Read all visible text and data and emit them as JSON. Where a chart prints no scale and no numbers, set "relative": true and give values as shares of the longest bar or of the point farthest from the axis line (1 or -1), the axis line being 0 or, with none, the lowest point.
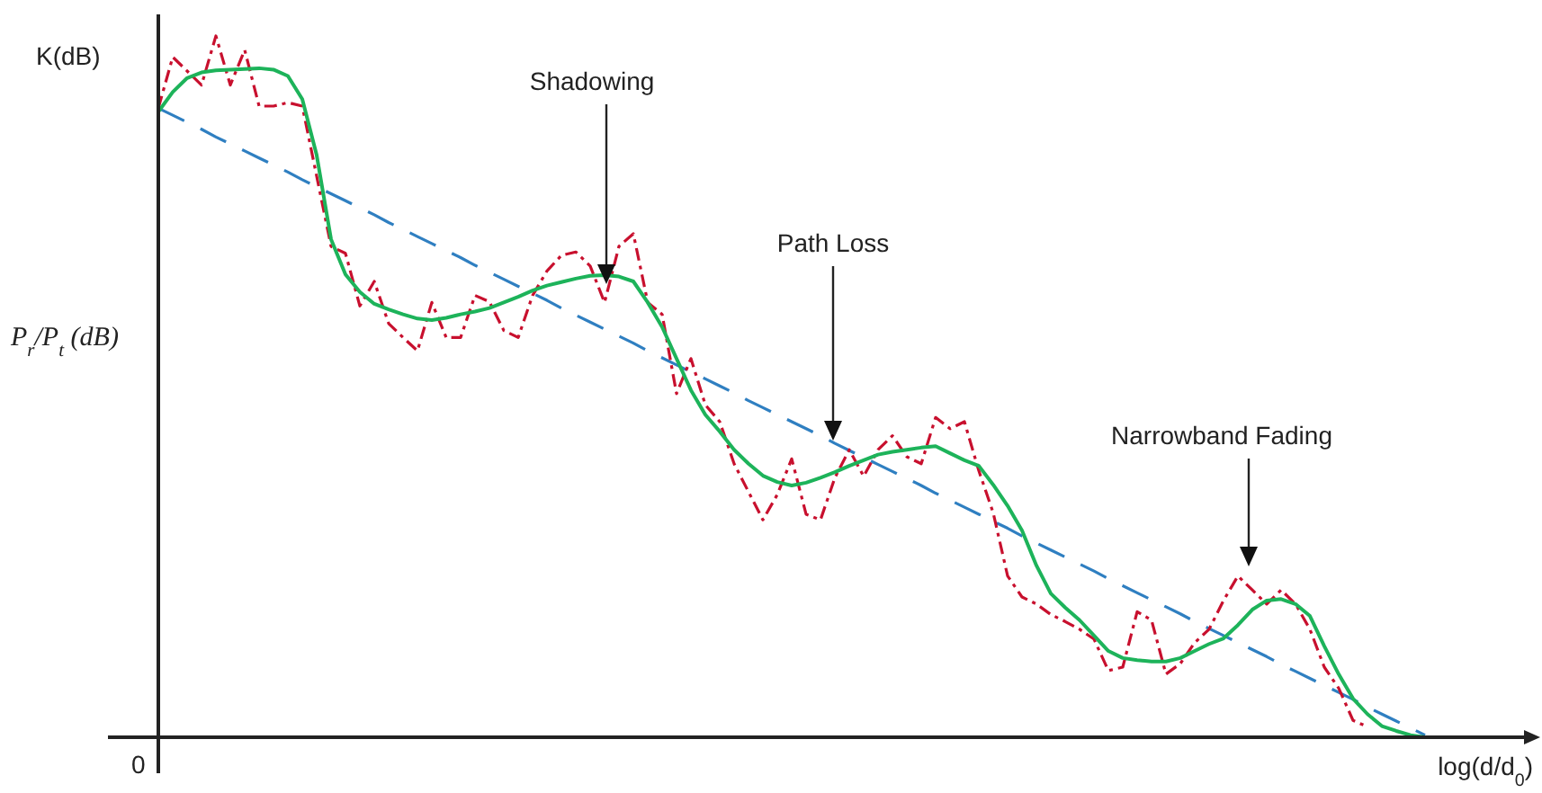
{
  "chart_data": {
    "type": "line",
    "relative": true,
    "xlabel": "log(d/d$_{0}$)",
    "ylabel": "P$_{r}$/P$_{t}$ (dB)",
    "categories": [
      null,
      null,
      null,
      null,
      null,
      null,
      null,
      null,
      null,
      null,
      null,
      null,
      null,
      null,
      null,
      null,
      null,
      null,
      null,
      null,
      null,
      null,
      null,
      null,
      null,
      null,
      null,
      null,
      null,
      null,
      null,
      null,
      null,
      null,
      null,
      null,
      null,
      null,
      null,
      null,
      null,
      null,
      null,
      null,
      null,
      null,
      null,
      null,
      null,
      null,
      null,
      null,
      null,
      null,
      null,
      null,
      null,
      null,
      null,
      null,
      null,
      null,
      null,
      null,
      null,
      null,
      null,
      null,
      null,
      null,
      null,
      null,
      null,
      null,
      null,
      null,
      null,
      null,
      null,
      null,
      null,
      null,
      null,
      null,
      null,
      null,
      null,
      null,
      null
    ],
    "annotations": [
      "K(dB)",
      "0",
      "Shadowing",
      "Path Loss",
      "Narrowband Fading"
    ],
    "series": [
      {
        "color": "#2f7fc1",
        "line_style": "dashed",
        "values": [
          0.897,
          0.887,
          0.877,
          0.867,
          0.856,
          0.846,
          0.836,
          0.826,
          0.816,
          0.806,
          0.795,
          0.785,
          0.775,
          0.765,
          0.755,
          0.745,
          0.734,
          0.724,
          0.714,
          0.704,
          0.694,
          0.684,
          0.673,
          0.663,
          0.653,
          0.643,
          0.633,
          0.623,
          0.612,
          0.602,
          0.592,
          0.582,
          0.572,
          0.562,
          0.551,
          0.541,
          0.531,
          0.521,
          0.511,
          0.501,
          0.491,
          0.48,
          0.47,
          0.46,
          0.45,
          0.44,
          0.43,
          0.419,
          0.409,
          0.399,
          0.389,
          0.379,
          0.369,
          0.359,
          0.348,
          0.338,
          0.328,
          0.318,
          0.308,
          0.298,
          0.287,
          0.277,
          0.267,
          0.257,
          0.247,
          0.237,
          0.226,
          0.216,
          0.206,
          0.196,
          0.186,
          0.176,
          0.165,
          0.155,
          0.145,
          0.135,
          0.125,
          0.115,
          0.104,
          0.094,
          0.084,
          0.074,
          0.064,
          0.054,
          0.043,
          0.033,
          0.023,
          0.013,
          0.003
        ]
      },
      {
        "color": "#c8102e",
        "line_style": "dotted",
        "values": [
          0.897,
          0.97,
          0.95,
          0.93,
          1.0,
          0.93,
          0.98,
          0.9,
          0.9,
          0.905,
          0.9,
          0.8,
          0.7,
          0.69,
          0.615,
          0.65,
          0.59,
          0.57,
          0.551,
          0.62,
          0.57,
          0.57,
          0.63,
          0.621,
          0.58,
          0.57,
          0.63,
          0.665,
          0.687,
          0.692,
          0.672,
          0.62,
          0.7,
          0.718,
          0.62,
          0.603,
          0.49,
          0.54,
          0.474,
          0.45,
          0.39,
          0.35,
          0.31,
          0.346,
          0.397,
          0.318,
          0.31,
          0.37,
          0.41,
          0.372,
          0.41,
          0.43,
          0.4,
          0.39,
          0.456,
          0.44,
          0.45,
          0.38,
          0.32,
          0.23,
          0.2,
          0.19,
          0.175,
          0.165,
          0.154,
          0.14,
          0.095,
          0.1,
          0.179,
          0.167,
          0.09,
          0.105,
          0.135,
          0.154,
          0.195,
          0.23,
          0.21,
          0.19,
          0.21,
          0.19,
          0.154,
          0.1,
          0.07,
          0.024,
          0.015,
          null,
          null,
          null,
          null
        ]
      },
      {
        "color": "#1db35a",
        "line_style": "solid",
        "values": [
          0.892,
          0.92,
          0.94,
          0.948,
          0.951,
          0.952,
          0.953,
          0.954,
          0.952,
          0.943,
          0.91,
          0.83,
          0.71,
          0.66,
          0.635,
          0.618,
          0.61,
          0.603,
          0.597,
          0.595,
          0.598,
          0.603,
          0.607,
          0.612,
          0.62,
          0.628,
          0.637,
          0.644,
          0.649,
          0.654,
          0.658,
          0.659,
          0.657,
          0.65,
          0.62,
          0.585,
          0.54,
          0.495,
          0.46,
          0.436,
          0.41,
          0.39,
          0.373,
          0.364,
          0.359,
          0.363,
          0.37,
          0.378,
          0.387,
          0.395,
          0.403,
          0.407,
          0.41,
          0.413,
          0.415,
          0.405,
          0.395,
          0.387,
          0.36,
          0.33,
          0.295,
          0.245,
          0.205,
          0.185,
          0.167,
          0.145,
          0.123,
          0.113,
          0.11,
          0.108,
          0.108,
          0.113,
          0.123,
          0.133,
          0.141,
          0.16,
          0.182,
          0.195,
          0.197,
          0.19,
          0.173,
          0.13,
          0.09,
          0.055,
          0.033,
          0.016,
          0.009,
          0.003,
          0
        ]
      }
    ]
  }
}
